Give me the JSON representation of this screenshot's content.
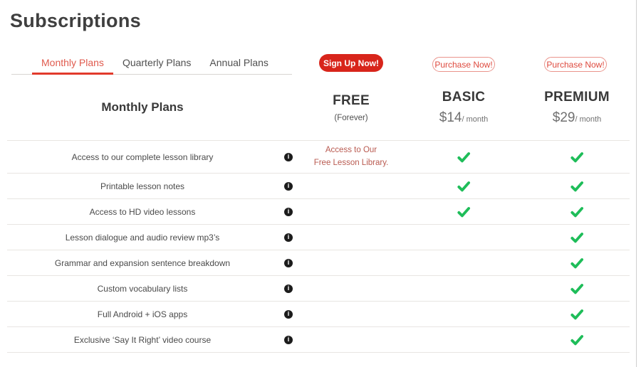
{
  "page": {
    "title": "Subscriptions"
  },
  "tabs": [
    {
      "label": "Monthly Plans",
      "active": true
    },
    {
      "label": "Quarterly Plans",
      "active": false
    },
    {
      "label": "Annual Plans",
      "active": false
    }
  ],
  "actions": {
    "free_button": "Sign Up Now!",
    "basic_button": "Purchase Now!",
    "premium_button": "Purchase Now!"
  },
  "table": {
    "feature_header": "Monthly Plans",
    "plans": [
      {
        "name": "FREE",
        "sub": "(Forever)"
      },
      {
        "name": "BASIC",
        "price": "$14",
        "period": "/ month"
      },
      {
        "name": "PREMIUM",
        "price": "$29",
        "period": "/ month"
      }
    ],
    "rows": [
      {
        "feature": "Access to our complete lesson library",
        "free_note": [
          "Access to Our",
          "Free Lesson Library."
        ],
        "basic": true,
        "premium": true
      },
      {
        "feature": "Printable lesson notes",
        "basic": true,
        "premium": true
      },
      {
        "feature": "Access to HD video lessons",
        "basic": true,
        "premium": true
      },
      {
        "feature": "Lesson dialogue and audio review mp3’s",
        "basic": false,
        "premium": true
      },
      {
        "feature": "Grammar and expansion sentence breakdown",
        "basic": false,
        "premium": true
      },
      {
        "feature": "Custom vocabulary lists",
        "basic": false,
        "premium": true
      },
      {
        "feature": "Full Android + iOS apps",
        "basic": false,
        "premium": true
      },
      {
        "feature": "Exclusive ‘Say It Right’ video course",
        "basic": false,
        "premium": true
      }
    ]
  },
  "icons": {
    "info": "info-icon",
    "check": "check-icon"
  },
  "colors": {
    "accent_red": "#d8251b",
    "tab_active_red": "#e05a4d",
    "tab_underline_red": "#e23a2c",
    "purchase_text_red": "#de4a3e",
    "purchase_border_red": "#ea948c",
    "check_green": "#1ebd59",
    "free_note_red": "#b95a50"
  }
}
